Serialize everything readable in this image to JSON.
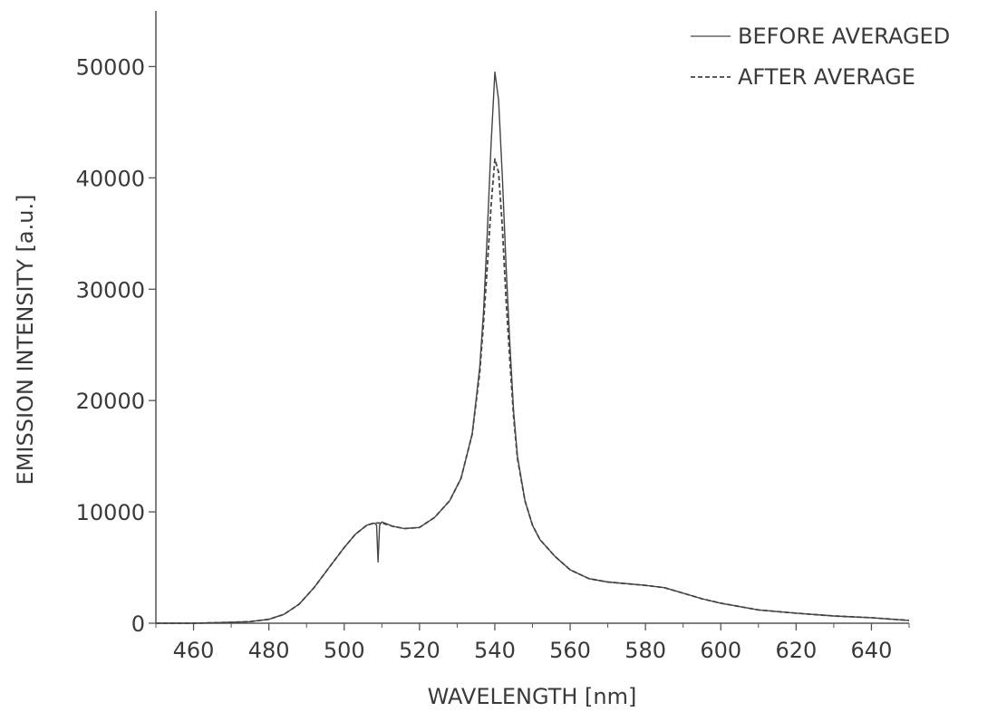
{
  "chart_data": {
    "type": "line",
    "title": "",
    "xlabel": "WAVELENGTH [nm]",
    "ylabel": "EMISSION INTENSITY [a.u.]",
    "xlim": [
      450,
      650
    ],
    "ylim": [
      0,
      55000
    ],
    "xticks": [
      460,
      480,
      500,
      520,
      540,
      560,
      580,
      600,
      620,
      640
    ],
    "yticks": [
      0,
      10000,
      20000,
      30000,
      40000,
      50000
    ],
    "grid": false,
    "legend_position": "top-right",
    "colors": {
      "line": "#444444",
      "axis": "#555555",
      "text": "#3a3a3a"
    },
    "series": [
      {
        "name": "BEFORE AVERAGED",
        "style": "solid",
        "points": [
          [
            450,
            0
          ],
          [
            460,
            0
          ],
          [
            470,
            80
          ],
          [
            475,
            150
          ],
          [
            480,
            350
          ],
          [
            484,
            800
          ],
          [
            488,
            1700
          ],
          [
            492,
            3200
          ],
          [
            496,
            5000
          ],
          [
            500,
            6800
          ],
          [
            503,
            8000
          ],
          [
            506,
            8800
          ],
          [
            508,
            9000
          ],
          [
            508.6,
            8800
          ],
          [
            509,
            5500
          ],
          [
            509.4,
            8800
          ],
          [
            510,
            9100
          ],
          [
            513,
            8700
          ],
          [
            516,
            8500
          ],
          [
            520,
            8600
          ],
          [
            524,
            9500
          ],
          [
            528,
            11000
          ],
          [
            531,
            13000
          ],
          [
            534,
            17000
          ],
          [
            536,
            23000
          ],
          [
            537,
            28000
          ],
          [
            538,
            35000
          ],
          [
            539,
            43000
          ],
          [
            540,
            49500
          ],
          [
            541,
            47000
          ],
          [
            542,
            40000
          ],
          [
            543,
            32000
          ],
          [
            544,
            25000
          ],
          [
            545,
            19000
          ],
          [
            546,
            15000
          ],
          [
            548,
            11000
          ],
          [
            550,
            8800
          ],
          [
            552,
            7500
          ],
          [
            556,
            6000
          ],
          [
            560,
            4800
          ],
          [
            565,
            4000
          ],
          [
            570,
            3700
          ],
          [
            580,
            3400
          ],
          [
            585,
            3200
          ],
          [
            590,
            2700
          ],
          [
            595,
            2200
          ],
          [
            600,
            1800
          ],
          [
            610,
            1200
          ],
          [
            620,
            900
          ],
          [
            630,
            650
          ],
          [
            640,
            500
          ],
          [
            650,
            250
          ]
        ]
      },
      {
        "name": "AFTER AVERAGE",
        "style": "dashed",
        "points": [
          [
            450,
            0
          ],
          [
            460,
            0
          ],
          [
            470,
            80
          ],
          [
            475,
            150
          ],
          [
            480,
            350
          ],
          [
            484,
            800
          ],
          [
            488,
            1700
          ],
          [
            492,
            3200
          ],
          [
            496,
            5000
          ],
          [
            500,
            6800
          ],
          [
            503,
            8000
          ],
          [
            506,
            8800
          ],
          [
            508,
            9000
          ],
          [
            510,
            9000
          ],
          [
            513,
            8700
          ],
          [
            516,
            8500
          ],
          [
            520,
            8600
          ],
          [
            524,
            9500
          ],
          [
            528,
            11000
          ],
          [
            531,
            13000
          ],
          [
            534,
            17000
          ],
          [
            536,
            22500
          ],
          [
            537,
            27000
          ],
          [
            538,
            32000
          ],
          [
            539,
            37500
          ],
          [
            540,
            41700
          ],
          [
            541,
            40500
          ],
          [
            542,
            35500
          ],
          [
            543,
            29000
          ],
          [
            544,
            23500
          ],
          [
            545,
            18500
          ],
          [
            546,
            14800
          ],
          [
            548,
            11000
          ],
          [
            550,
            8800
          ],
          [
            552,
            7500
          ],
          [
            556,
            6000
          ],
          [
            560,
            4800
          ],
          [
            565,
            4000
          ],
          [
            570,
            3700
          ],
          [
            580,
            3400
          ],
          [
            585,
            3200
          ],
          [
            590,
            2700
          ],
          [
            595,
            2200
          ],
          [
            600,
            1800
          ],
          [
            610,
            1200
          ],
          [
            620,
            900
          ],
          [
            630,
            650
          ],
          [
            640,
            500
          ],
          [
            650,
            250
          ]
        ]
      }
    ]
  }
}
